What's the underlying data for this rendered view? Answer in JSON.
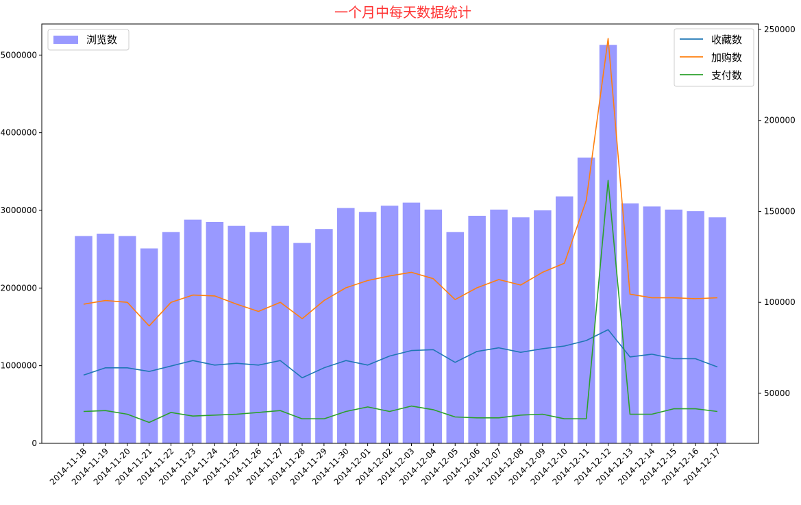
{
  "chart_data": {
    "type": "bar",
    "title": "一个月中每天数据统计",
    "title_color": "#ff3333",
    "categories": [
      "2014-11-18",
      "2014-11-19",
      "2014-11-20",
      "2014-11-21",
      "2014-11-22",
      "2014-11-23",
      "2014-11-24",
      "2014-11-25",
      "2014-11-26",
      "2014-11-27",
      "2014-11-28",
      "2014-11-29",
      "2014-11-30",
      "2014-12-01",
      "2014-12-02",
      "2014-12-03",
      "2014-12-04",
      "2014-12-05",
      "2014-12-06",
      "2014-12-07",
      "2014-12-08",
      "2014-12-09",
      "2014-12-10",
      "2014-12-11",
      "2014-12-12",
      "2014-12-13",
      "2014-12-14",
      "2014-12-15",
      "2014-12-16",
      "2014-12-17"
    ],
    "bar_series": {
      "name": "浏览数",
      "color": "#9999ff",
      "values": [
        2670000,
        2700000,
        2670000,
        2510000,
        2720000,
        2880000,
        2850000,
        2800000,
        2720000,
        2800000,
        2580000,
        2760000,
        3030000,
        2980000,
        3060000,
        3100000,
        3010000,
        2720000,
        2930000,
        3010000,
        2910000,
        3000000,
        3180000,
        3680000,
        5130000,
        3090000,
        3050000,
        3010000,
        2990000,
        2910000
      ]
    },
    "line_series": [
      {
        "name": "收藏数",
        "color": "#1f77b4",
        "values": [
          60000,
          64000,
          64000,
          62000,
          65000,
          68000,
          65500,
          66500,
          65500,
          68000,
          58500,
          64000,
          68000,
          65500,
          70500,
          73500,
          74000,
          67000,
          73000,
          75000,
          72500,
          74500,
          76000,
          79000,
          85000,
          70000,
          71500,
          69000,
          69000,
          64500
        ]
      },
      {
        "name": "加购数",
        "color": "#ff7f0e",
        "values": [
          99000,
          101000,
          100000,
          87000,
          100000,
          104000,
          103500,
          99000,
          95000,
          100000,
          91000,
          101000,
          108000,
          112000,
          114500,
          116500,
          113000,
          101500,
          108000,
          112500,
          109500,
          116500,
          121500,
          156000,
          245000,
          104500,
          102500,
          102500,
          102000,
          102500
        ]
      },
      {
        "name": "支付数",
        "color": "#2ca02c",
        "values": [
          40000,
          40500,
          38500,
          34000,
          39500,
          37500,
          38000,
          38500,
          39500,
          40500,
          36000,
          36000,
          40000,
          42500,
          40000,
          43000,
          41000,
          37000,
          36500,
          36500,
          38000,
          38500,
          36000,
          36000,
          167000,
          38500,
          38500,
          41500,
          41500,
          40000
        ]
      }
    ],
    "y_left": {
      "ylim": [
        0,
        5400000
      ],
      "ticks": [
        "0",
        "1000000",
        "2000000",
        "3000000",
        "4000000",
        "5000000"
      ],
      "tick_values": [
        0,
        1000000,
        2000000,
        3000000,
        4000000,
        5000000
      ]
    },
    "y_right": {
      "ylim": [
        22500,
        253000
      ],
      "ticks": [
        "50000",
        "100000",
        "150000",
        "200000",
        "250000"
      ],
      "tick_values": [
        50000,
        100000,
        150000,
        200000,
        250000
      ]
    },
    "legend_left_placement": "top-left",
    "legend_right_placement": "top-right",
    "grid": false
  }
}
